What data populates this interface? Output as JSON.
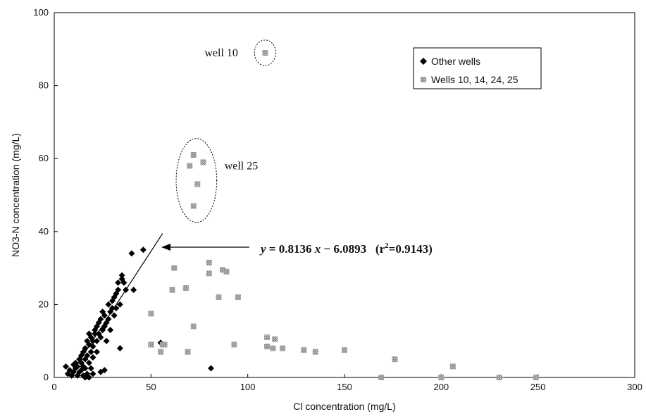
{
  "chart_data": {
    "type": "scatter",
    "xlabel": "Cl concentration (mg/L)",
    "ylabel": "NO3-N concentration (mg/L)",
    "xlim": [
      0,
      300
    ],
    "ylim": [
      0,
      100
    ],
    "xticks": [
      "0",
      "50",
      "100",
      "150",
      "200",
      "250",
      "300"
    ],
    "yticks": [
      "0",
      "20",
      "40",
      "60",
      "80",
      "100"
    ],
    "grid": false,
    "legend_position": "top-right",
    "series": [
      {
        "name": "Other wells",
        "marker": "diamond",
        "color": "#000000",
        "points": [
          [
            6,
            3
          ],
          [
            7,
            1
          ],
          [
            8,
            2
          ],
          [
            9,
            0.5
          ],
          [
            10,
            3.5
          ],
          [
            10,
            1.5
          ],
          [
            11,
            4
          ],
          [
            11,
            2.5
          ],
          [
            12,
            0.5
          ],
          [
            12,
            3
          ],
          [
            13,
            5
          ],
          [
            13,
            1.5
          ],
          [
            14,
            4
          ],
          [
            14,
            6
          ],
          [
            14,
            2
          ],
          [
            15,
            7
          ],
          [
            15,
            3
          ],
          [
            15,
            0.5
          ],
          [
            16,
            5
          ],
          [
            16,
            8
          ],
          [
            16,
            2.5
          ],
          [
            17,
            6
          ],
          [
            17,
            10
          ],
          [
            17,
            1
          ],
          [
            18,
            9
          ],
          [
            18,
            4
          ],
          [
            18,
            12
          ],
          [
            19,
            7
          ],
          [
            19,
            11
          ],
          [
            19,
            2.5
          ],
          [
            20,
            10
          ],
          [
            20,
            5.5
          ],
          [
            20,
            8.5
          ],
          [
            21,
            13
          ],
          [
            21,
            12
          ],
          [
            22,
            10
          ],
          [
            22,
            14
          ],
          [
            22,
            7
          ],
          [
            23,
            12
          ],
          [
            23,
            15
          ],
          [
            24,
            16
          ],
          [
            24,
            11
          ],
          [
            25,
            13
          ],
          [
            25,
            18
          ],
          [
            26,
            14
          ],
          [
            26,
            17
          ],
          [
            27,
            15
          ],
          [
            27,
            10
          ],
          [
            28,
            20
          ],
          [
            28,
            16
          ],
          [
            29,
            18
          ],
          [
            29,
            13
          ],
          [
            30,
            19
          ],
          [
            30,
            21
          ],
          [
            31,
            17
          ],
          [
            31,
            22
          ],
          [
            32,
            23
          ],
          [
            32,
            19
          ],
          [
            33,
            26
          ],
          [
            33,
            24
          ],
          [
            34,
            20
          ],
          [
            35,
            27
          ],
          [
            35,
            28
          ],
          [
            36,
            26
          ],
          [
            37,
            24
          ],
          [
            40,
            34
          ],
          [
            41,
            24
          ],
          [
            46,
            35
          ],
          [
            16,
            0
          ],
          [
            18,
            0
          ],
          [
            20,
            1
          ],
          [
            24,
            1.5
          ],
          [
            26,
            2
          ],
          [
            34,
            8
          ],
          [
            55,
            9.5
          ],
          [
            81,
            2.5
          ]
        ]
      },
      {
        "name": "Wells 10, 14, 24, 25",
        "marker": "speckled-square",
        "color": "#999999",
        "points": [
          [
            109,
            89
          ],
          [
            70,
            58
          ],
          [
            72,
            61
          ],
          [
            74,
            53
          ],
          [
            77,
            59
          ],
          [
            72,
            47
          ],
          [
            50,
            17.5
          ],
          [
            57,
            9
          ],
          [
            62,
            30
          ],
          [
            61,
            24
          ],
          [
            68,
            24.5
          ],
          [
            69,
            7
          ],
          [
            72,
            14
          ],
          [
            80,
            31.5
          ],
          [
            80,
            28.5
          ],
          [
            85,
            22
          ],
          [
            87,
            29.5
          ],
          [
            89,
            29
          ],
          [
            95,
            22
          ],
          [
            93,
            9
          ],
          [
            110,
            11
          ],
          [
            110,
            8.5
          ],
          [
            113,
            8
          ],
          [
            114,
            10.5
          ],
          [
            118,
            8
          ],
          [
            129,
            7.5
          ],
          [
            135,
            7
          ],
          [
            150,
            7.5
          ],
          [
            176,
            5
          ],
          [
            206,
            3
          ],
          [
            169,
            0
          ],
          [
            200,
            0
          ],
          [
            230,
            0
          ],
          [
            249,
            0
          ],
          [
            50,
            9
          ],
          [
            55,
            7
          ],
          [
            56,
            9
          ]
        ]
      }
    ],
    "regression": {
      "series": "Other wells",
      "slope": 0.8136,
      "intercept": -6.0893,
      "x_range": [
        8,
        56
      ],
      "equation_text": "y = 0.8136 x − 6.0893 (r²=0.9143)",
      "eq_y_part": "y",
      "eq_mid_part": " = 0.8136 ",
      "eq_x_part": "x",
      "eq_tail_part": " − 6.0893   (r",
      "eq_sup": "2",
      "eq_end": "=0.9143)"
    },
    "annotations": [
      {
        "text": "well 10",
        "x": 95,
        "y": 89,
        "circle_center": [
          109,
          89
        ],
        "circle_radius_data": [
          5.5,
          3.5
        ]
      },
      {
        "text": "well 25",
        "x": 88,
        "y": 58,
        "circle_center": [
          73.5,
          54
        ],
        "circle_radius_data": [
          10.5,
          11.5
        ]
      }
    ],
    "legend": {
      "items": [
        {
          "label": "Other wells",
          "marker": "diamond"
        },
        {
          "label": "Wells 10, 14, 24, 25",
          "marker": "speckled-square"
        }
      ]
    }
  }
}
